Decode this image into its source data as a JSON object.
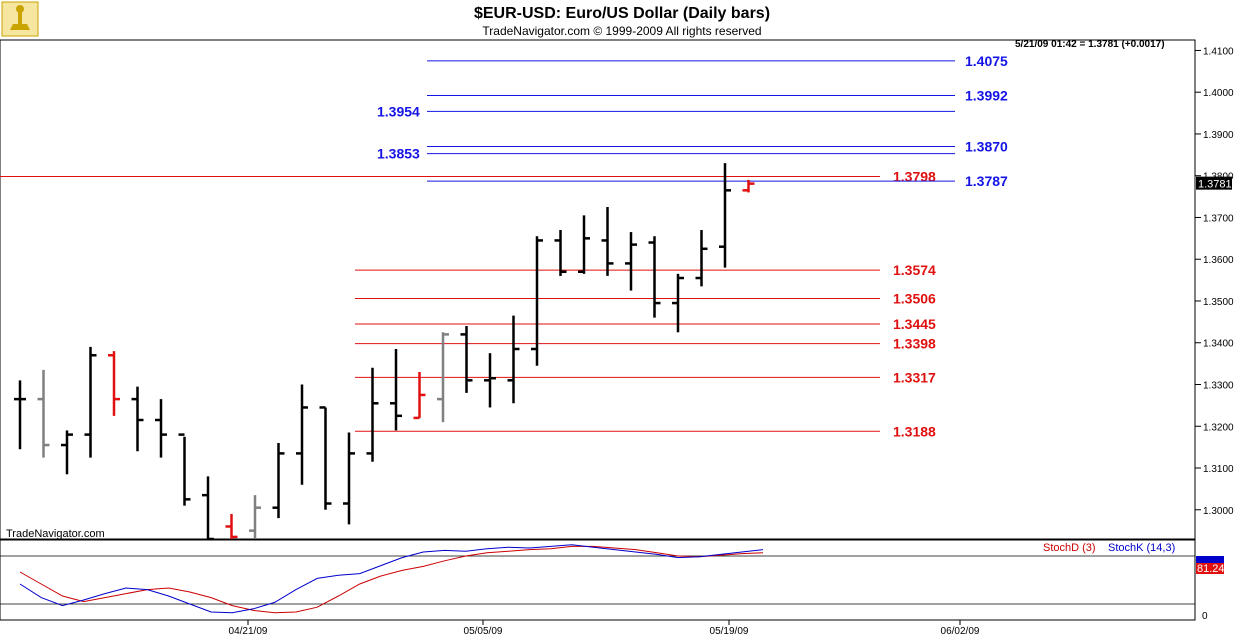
{
  "header": {
    "title": "$EUR-USD:  Euro/US Dollar  (Daily bars)",
    "subtitle": "TradeNavigator.com © 1999-2009 All rights reserved",
    "logo_icon": "trophy-icon"
  },
  "quote": "5/21/09 01:42 = 1.3781 (+0.0017)",
  "watermark": "TradeNavigator.com",
  "last_price": "1.3781",
  "colors": {
    "up_bar": "#000000",
    "down_bar": "#e01010",
    "neutral_bar": "#808080",
    "red_level": "#e01010",
    "blue_level": "#1414e6",
    "price_badge": "#000000",
    "stoch_badge": "#e01010"
  },
  "chart_data": [
    {
      "type": "ohlc",
      "title": "$EUR-USD:  Euro/US Dollar  (Daily bars)",
      "ylim": [
        1.293,
        1.4125
      ],
      "y_ticks": [
        "1.3000",
        "1.3100",
        "1.3200",
        "1.3300",
        "1.3400",
        "1.3500",
        "1.3600",
        "1.3700",
        "1.3800",
        "1.3900",
        "1.4000",
        "1.4100"
      ],
      "x_ticks": [
        "04/21/09",
        "05/05/09",
        "05/19/09",
        "06/02/09"
      ],
      "grid": false,
      "bars": [
        {
          "o": 1.3265,
          "h": 1.331,
          "l": 1.3145,
          "c": 1.3265,
          "color": "black"
        },
        {
          "o": 1.3265,
          "h": 1.3335,
          "l": 1.3125,
          "c": 1.3155,
          "color": "gray"
        },
        {
          "o": 1.3155,
          "h": 1.319,
          "l": 1.3085,
          "c": 1.318,
          "color": "black"
        },
        {
          "o": 1.318,
          "h": 1.339,
          "l": 1.3125,
          "c": 1.337,
          "color": "black"
        },
        {
          "o": 1.337,
          "h": 1.338,
          "l": 1.3225,
          "c": 1.3265,
          "color": "red"
        },
        {
          "o": 1.3265,
          "h": 1.3295,
          "l": 1.314,
          "c": 1.3215,
          "color": "black"
        },
        {
          "o": 1.3215,
          "h": 1.3265,
          "l": 1.3125,
          "c": 1.318,
          "color": "black"
        },
        {
          "o": 1.318,
          "h": 1.3175,
          "l": 1.301,
          "c": 1.3025,
          "color": "black"
        },
        {
          "o": 1.3035,
          "h": 1.308,
          "l": 1.293,
          "c": 1.293,
          "color": "black"
        },
        {
          "o": 1.296,
          "h": 1.299,
          "l": 1.293,
          "c": 1.2935,
          "color": "red"
        },
        {
          "o": 1.295,
          "h": 1.3035,
          "l": 1.293,
          "c": 1.3005,
          "color": "gray"
        },
        {
          "o": 1.3005,
          "h": 1.316,
          "l": 1.298,
          "c": 1.3135,
          "color": "black"
        },
        {
          "o": 1.3135,
          "h": 1.33,
          "l": 1.306,
          "c": 1.3245,
          "color": "black"
        },
        {
          "o": 1.3245,
          "h": 1.3245,
          "l": 1.3,
          "c": 1.3015,
          "color": "black"
        },
        {
          "o": 1.3015,
          "h": 1.3185,
          "l": 1.2965,
          "c": 1.3135,
          "color": "black"
        },
        {
          "o": 1.3135,
          "h": 1.334,
          "l": 1.3115,
          "c": 1.3255,
          "color": "black"
        },
        {
          "o": 1.3255,
          "h": 1.3385,
          "l": 1.319,
          "c": 1.3225,
          "color": "black"
        },
        {
          "o": 1.322,
          "h": 1.333,
          "l": 1.322,
          "c": 1.3275,
          "color": "red"
        },
        {
          "o": 1.3265,
          "h": 1.3425,
          "l": 1.321,
          "c": 1.342,
          "color": "gray"
        },
        {
          "o": 1.342,
          "h": 1.344,
          "l": 1.328,
          "c": 1.331,
          "color": "black"
        },
        {
          "o": 1.331,
          "h": 1.3375,
          "l": 1.3245,
          "c": 1.3315,
          "color": "black"
        },
        {
          "o": 1.331,
          "h": 1.3465,
          "l": 1.3255,
          "c": 1.3385,
          "color": "black"
        },
        {
          "o": 1.3385,
          "h": 1.3655,
          "l": 1.3345,
          "c": 1.3645,
          "color": "black"
        },
        {
          "o": 1.3645,
          "h": 1.367,
          "l": 1.356,
          "c": 1.357,
          "color": "black"
        },
        {
          "o": 1.357,
          "h": 1.3705,
          "l": 1.3565,
          "c": 1.365,
          "color": "black"
        },
        {
          "o": 1.3645,
          "h": 1.3725,
          "l": 1.356,
          "c": 1.359,
          "color": "black"
        },
        {
          "o": 1.359,
          "h": 1.3665,
          "l": 1.3525,
          "c": 1.3635,
          "color": "black"
        },
        {
          "o": 1.364,
          "h": 1.3655,
          "l": 1.346,
          "c": 1.3495,
          "color": "black"
        },
        {
          "o": 1.3495,
          "h": 1.3565,
          "l": 1.3425,
          "c": 1.3555,
          "color": "black"
        },
        {
          "o": 1.3555,
          "h": 1.367,
          "l": 1.3535,
          "c": 1.3625,
          "color": "black"
        },
        {
          "o": 1.363,
          "h": 1.383,
          "l": 1.358,
          "c": 1.3765,
          "color": "black"
        },
        {
          "o": 1.3765,
          "h": 1.379,
          "l": 1.376,
          "c": 1.3781,
          "color": "red"
        }
      ],
      "levels": [
        {
          "value": 1.4075,
          "label": "1.4075",
          "color": "blue",
          "label_side": "right"
        },
        {
          "value": 1.3992,
          "label": "1.3992",
          "color": "blue",
          "label_side": "right"
        },
        {
          "value": 1.3954,
          "label": "1.3954",
          "color": "blue",
          "label_side": "left"
        },
        {
          "value": 1.387,
          "label": "1.3870",
          "color": "blue",
          "label_side": "right"
        },
        {
          "value": 1.3853,
          "label": "1.3853",
          "color": "blue",
          "label_side": "left"
        },
        {
          "value": 1.3798,
          "label": "1.3798",
          "color": "red",
          "label_side": "left",
          "full_width": true
        },
        {
          "value": 1.3787,
          "label": "1.3787",
          "color": "blue",
          "label_side": "right"
        },
        {
          "value": 1.3574,
          "label": "1.3574",
          "color": "red",
          "label_side": "left"
        },
        {
          "value": 1.3506,
          "label": "1.3506",
          "color": "red",
          "label_side": "left"
        },
        {
          "value": 1.3445,
          "label": "1.3445",
          "color": "red",
          "label_side": "left"
        },
        {
          "value": 1.3398,
          "label": "1.3398",
          "color": "red",
          "label_side": "left"
        },
        {
          "value": 1.3317,
          "label": "1.3317",
          "color": "red",
          "label_side": "left"
        },
        {
          "value": 1.3188,
          "label": "1.3188",
          "color": "red",
          "label_side": "left"
        }
      ]
    },
    {
      "type": "line",
      "title": "",
      "ylim": [
        0,
        100
      ],
      "y_ticks": [
        "0"
      ],
      "reference_lines": [
        20,
        80
      ],
      "series": [
        {
          "name": "StochD (3)",
          "color": "red",
          "values": [
            60,
            45,
            30,
            23,
            28,
            33,
            38,
            40,
            35,
            28,
            18,
            12,
            9,
            10,
            16,
            30,
            45,
            55,
            62,
            67,
            74,
            80,
            84,
            86,
            88,
            89,
            92,
            92,
            90,
            88,
            84,
            80,
            79,
            81,
            83,
            84
          ]
        },
        {
          "name": "StochK (14,3)",
          "color": "blue",
          "values": [
            45,
            28,
            18,
            25,
            33,
            40,
            38,
            30,
            20,
            10,
            9,
            14,
            22,
            38,
            52,
            56,
            58,
            68,
            78,
            85,
            87,
            86,
            89,
            91,
            90,
            92,
            94,
            91,
            88,
            85,
            82,
            78,
            79,
            82,
            85,
            88
          ]
        }
      ],
      "last_value": "81.24"
    }
  ]
}
